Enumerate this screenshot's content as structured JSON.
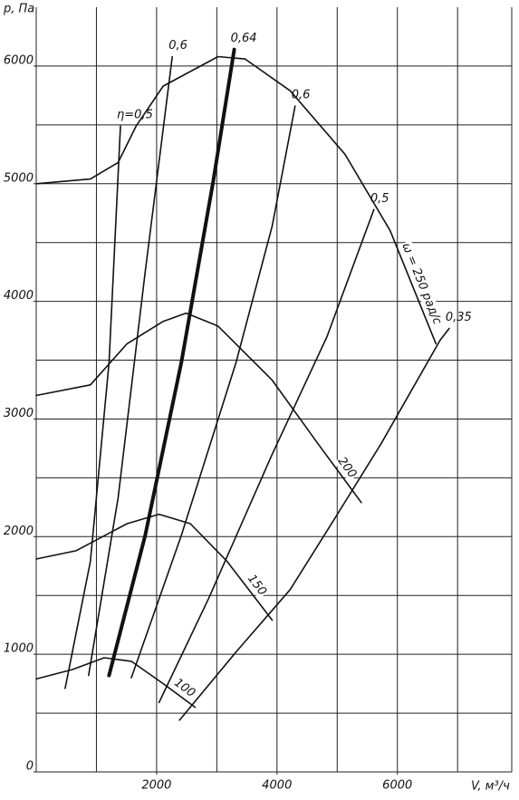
{
  "chart_data": {
    "type": "line",
    "x_label": "V, м³/ч",
    "y_label": "p, Па",
    "xlim": [
      0,
      7900
    ],
    "ylim": [
      0,
      6500
    ],
    "xticks": [
      2000,
      4000,
      6000
    ],
    "yticks": [
      0,
      1000,
      2000,
      3000,
      4000,
      5000,
      6000
    ],
    "xgrid": [
      1000,
      2000,
      3000,
      4000,
      5000,
      6000,
      7000
    ],
    "ygrid": [
      500,
      1000,
      1500,
      2000,
      2500,
      3000,
      3500,
      4000,
      4500,
      5000,
      5500,
      6000
    ],
    "series": [
      {
        "name": "ω = 250 рад/с",
        "color": "#111",
        "width": 1.6,
        "x": [
          0,
          900,
          1360,
          1660,
          2110,
          3020,
          3470,
          4220,
          5130,
          5880,
          6640
        ],
        "values": [
          5000,
          5040,
          5180,
          5490,
          5830,
          6080,
          6060,
          5790,
          5250,
          4600,
          3640
        ]
      },
      {
        "name": "200",
        "color": "#111",
        "width": 1.6,
        "x": [
          0,
          900,
          1510,
          2110,
          2490,
          3020,
          3920,
          4680,
          5400
        ],
        "values": [
          3200,
          3290,
          3640,
          3830,
          3900,
          3790,
          3330,
          2790,
          2290
        ]
      },
      {
        "name": "150",
        "color": "#111",
        "width": 1.6,
        "x": [
          0,
          660,
          1510,
          2040,
          2560,
          3170,
          3920
        ],
        "values": [
          1810,
          1880,
          2110,
          2190,
          2110,
          1790,
          1290
        ]
      },
      {
        "name": "100",
        "color": "#111",
        "width": 1.6,
        "x": [
          0,
          600,
          1130,
          1580,
          2110,
          2640
        ],
        "values": [
          790,
          870,
          970,
          940,
          750,
          550
        ]
      }
    ],
    "efficiency_series": [
      {
        "name": "η=0,5",
        "color": "#111",
        "width": 1.6,
        "x": [
          480,
          900,
          1210,
          1400
        ],
        "values": [
          710,
          1790,
          3480,
          5490
        ]
      },
      {
        "name": "0,6",
        "color": "#111",
        "width": 1.6,
        "x": [
          870,
          1360,
          1810,
          2260
        ],
        "values": [
          820,
          2330,
          4250,
          6080
        ]
      },
      {
        "name": "0,64",
        "color": "#111",
        "width": 4,
        "x": [
          1210,
          1810,
          2410,
          2940,
          3290
        ],
        "values": [
          820,
          2010,
          3480,
          5020,
          6140
        ]
      },
      {
        "name": "0,6",
        "color": "#111",
        "width": 1.6,
        "x": [
          1580,
          2410,
          3320,
          3920,
          4300
        ],
        "values": [
          800,
          2010,
          3480,
          4640,
          5660
        ]
      },
      {
        "name": "0,5",
        "color": "#111",
        "width": 1.6,
        "x": [
          2040,
          2870,
          3920,
          4830,
          5610
        ],
        "values": [
          590,
          1480,
          2700,
          3700,
          4780
        ]
      },
      {
        "name": "0,35",
        "color": "#111",
        "width": 1.6,
        "x": [
          2380,
          3320,
          4220,
          4980,
          5730,
          6710,
          6860
        ],
        "values": [
          440,
          1020,
          1550,
          2170,
          2790,
          3670,
          3770
        ]
      }
    ]
  }
}
